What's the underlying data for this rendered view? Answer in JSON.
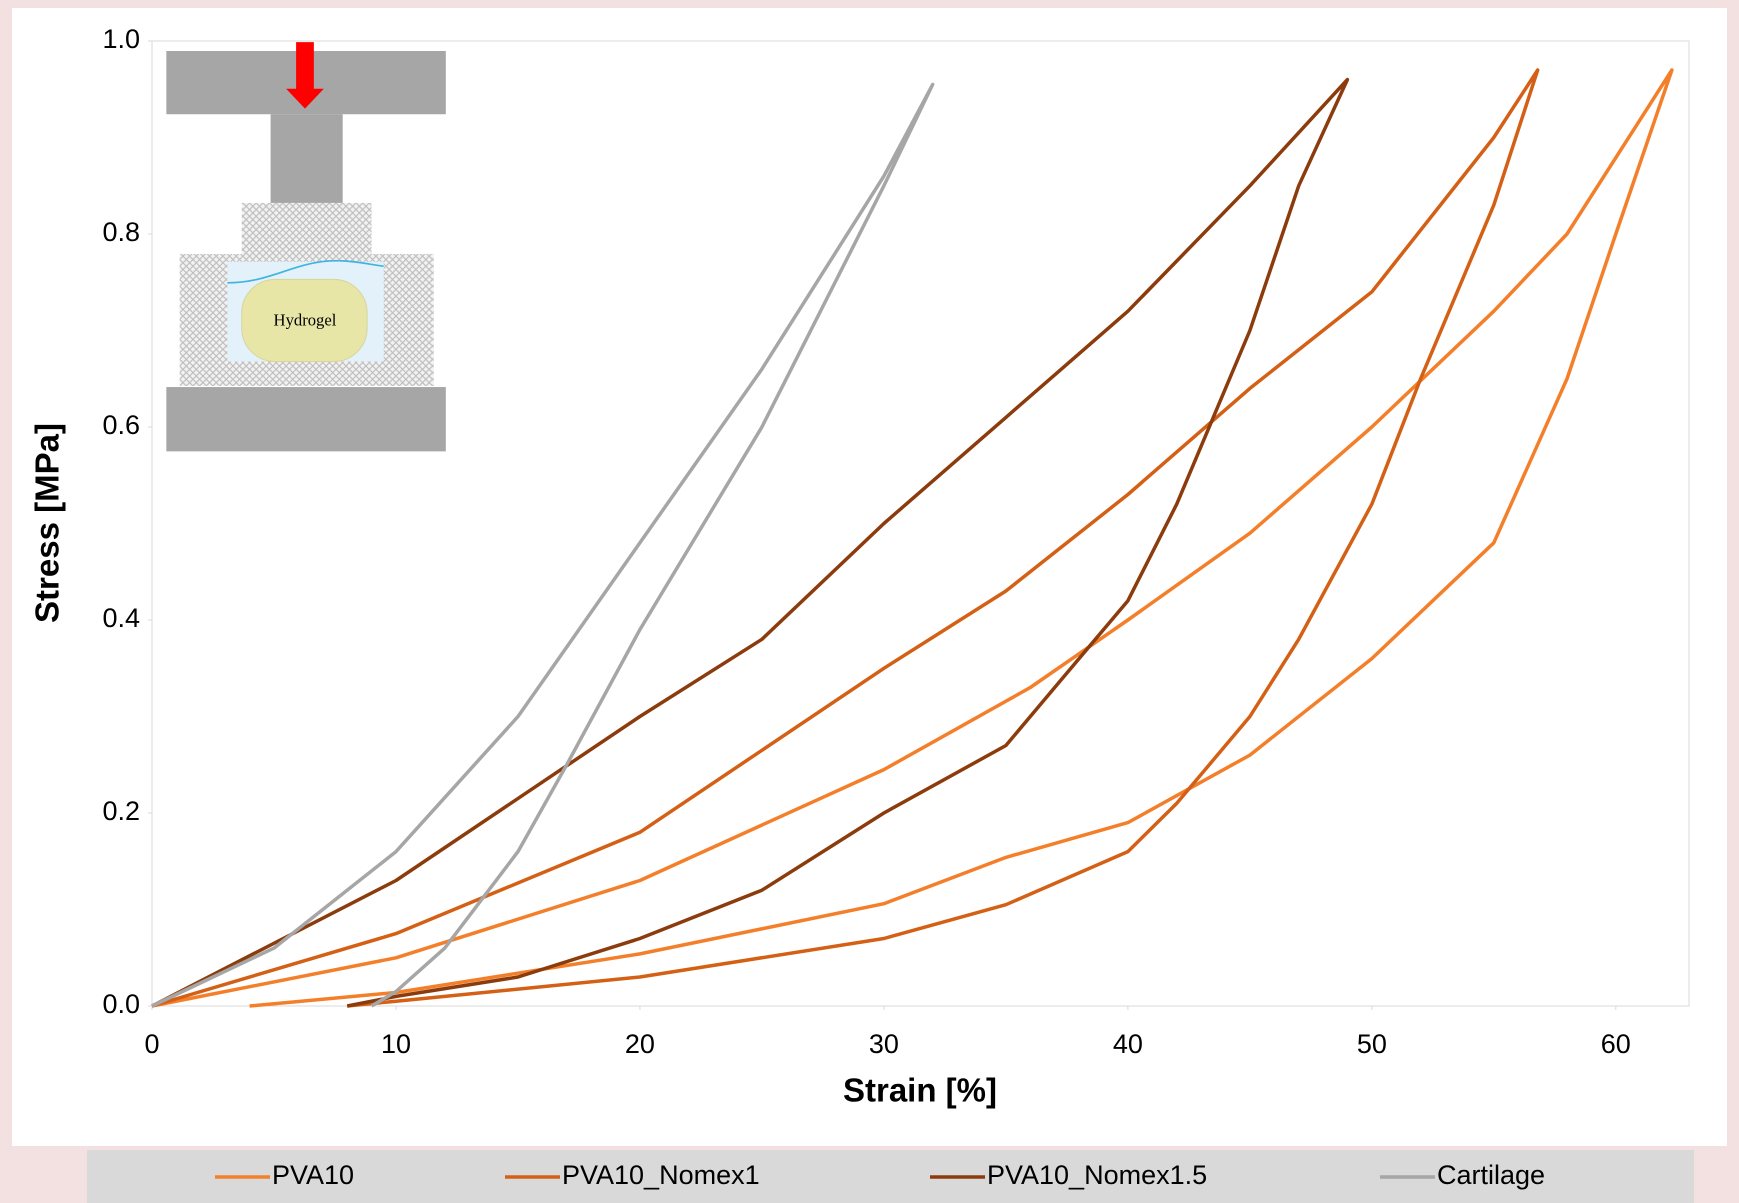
{
  "chart_data": {
    "type": "line",
    "xlabel": "Strain [%]",
    "ylabel": "Stress [MPa]",
    "inset_label": "Hydrogel",
    "xlim": [
      0,
      63
    ],
    "xticks": [
      0,
      10,
      20,
      30,
      40,
      50,
      60
    ],
    "ylim": [
      0,
      1
    ],
    "yticks": [
      {
        "value": 0,
        "label": "0.0"
      },
      0.2,
      0.4,
      0.6,
      0.8,
      {
        "value": 1,
        "label": "1.0"
      }
    ],
    "grid": false,
    "legend": "bottom",
    "series": [
      {
        "name": "PVA10",
        "color": "#f47f2a",
        "x": [
          0,
          10,
          20,
          30,
          36,
          40,
          45,
          50,
          55,
          58,
          62.3,
          60,
          58,
          55,
          50,
          45,
          40,
          35,
          30,
          20,
          10,
          4
        ],
        "values": [
          0,
          0.05,
          0.13,
          0.245,
          0.33,
          0.4,
          0.49,
          0.6,
          0.72,
          0.8,
          0.97,
          0.8,
          0.65,
          0.48,
          0.36,
          0.26,
          0.19,
          0.154,
          0.106,
          0.054,
          0.014,
          0
        ]
      },
      {
        "name": "PVA10_Nomex1",
        "color": "#d46016",
        "x": [
          0,
          10,
          20,
          30,
          35,
          40,
          45,
          50,
          55,
          56.8,
          55,
          52,
          50,
          47,
          45,
          42,
          40,
          35,
          30,
          20,
          10,
          8
        ],
        "values": [
          0,
          0.075,
          0.18,
          0.35,
          0.43,
          0.53,
          0.64,
          0.74,
          0.9,
          0.97,
          0.83,
          0.65,
          0.52,
          0.38,
          0.3,
          0.21,
          0.16,
          0.105,
          0.07,
          0.03,
          0.005,
          0
        ]
      },
      {
        "name": "PVA10_Nomex1.5",
        "color": "#8c3c0c",
        "x": [
          0,
          10,
          20,
          25,
          30,
          35,
          40,
          45,
          49,
          47,
          45,
          42,
          40,
          37,
          35,
          30,
          25,
          20,
          15,
          10,
          8
        ],
        "values": [
          0,
          0.13,
          0.3,
          0.38,
          0.5,
          0.61,
          0.72,
          0.85,
          0.96,
          0.85,
          0.7,
          0.52,
          0.42,
          0.33,
          0.27,
          0.2,
          0.12,
          0.07,
          0.03,
          0.01,
          0
        ]
      },
      {
        "name": "Cartilage",
        "color": "#a6a6a6",
        "x": [
          0,
          5,
          10,
          15,
          20,
          25,
          30,
          32,
          30,
          25,
          20,
          17,
          15,
          12,
          10,
          9
        ],
        "values": [
          0,
          0.06,
          0.16,
          0.3,
          0.48,
          0.66,
          0.86,
          0.955,
          0.85,
          0.6,
          0.39,
          0.25,
          0.16,
          0.06,
          0.015,
          0
        ]
      }
    ]
  }
}
